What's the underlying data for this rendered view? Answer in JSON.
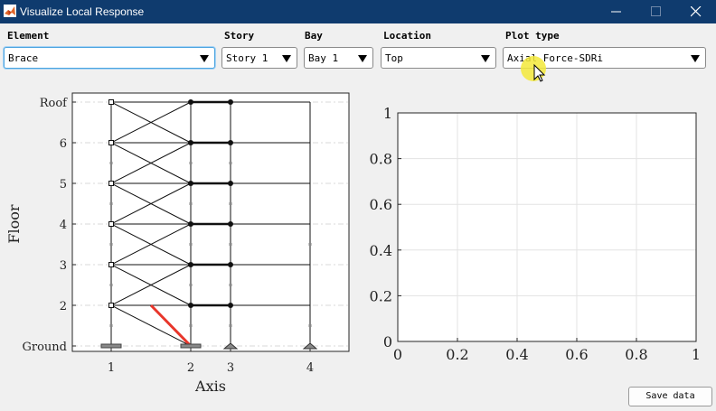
{
  "window": {
    "title": "Visualize Local Response",
    "icon": "matlab-icon",
    "controls": [
      "minimize-icon",
      "maximize-icon",
      "close-icon"
    ]
  },
  "controls": {
    "element": {
      "label": "Element",
      "value": "Brace"
    },
    "story": {
      "label": "Story",
      "value": "Story 1"
    },
    "bay": {
      "label": "Bay",
      "value": "Bay 1"
    },
    "location": {
      "label": "Location",
      "value": "Top"
    },
    "plot_type": {
      "label": "Plot type",
      "value": "Axial Force-SDRi"
    }
  },
  "buttons": {
    "save": "Save data"
  },
  "frame_plot": {
    "xlabel": "Axis",
    "ylabel": "Floor",
    "x_ticks": [
      "1",
      "2",
      "3",
      "4"
    ],
    "y_ticks": [
      "Ground",
      "2",
      "3",
      "4",
      "5",
      "6",
      "Roof"
    ],
    "highlight_color": "#e8362b"
  },
  "chart_data": {
    "type": "line",
    "title": "",
    "xlabel": "",
    "ylabel": "",
    "xlim": [
      0,
      1
    ],
    "ylim": [
      0,
      1
    ],
    "x_ticks": [
      "0",
      "0.2",
      "0.4",
      "0.6",
      "0.8",
      "1"
    ],
    "y_ticks": [
      "0",
      "0.2",
      "0.4",
      "0.6",
      "0.8",
      "1"
    ],
    "grid": true,
    "series": []
  }
}
